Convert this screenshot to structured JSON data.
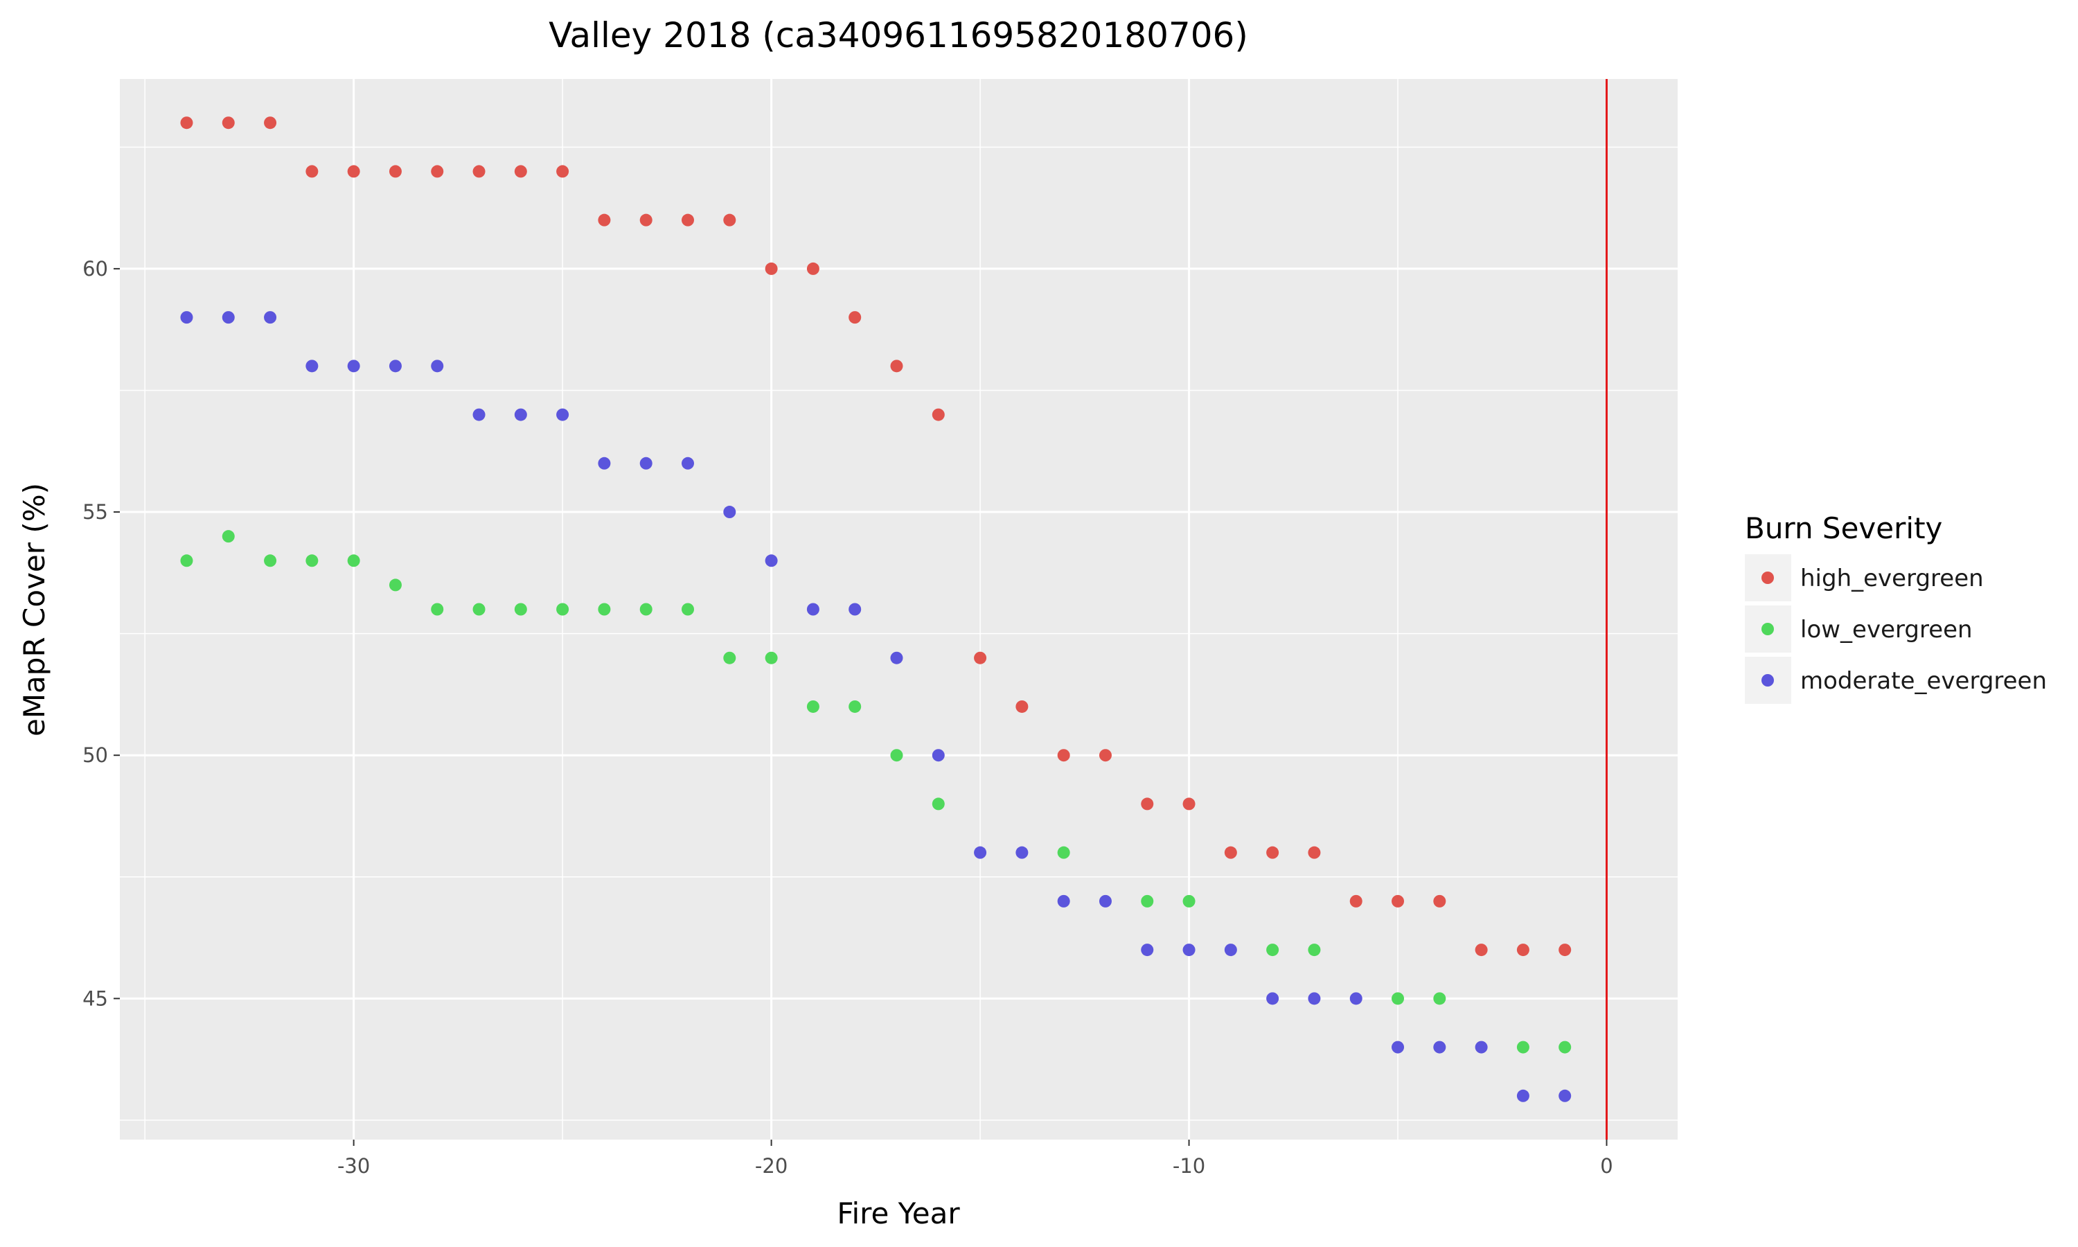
{
  "chart_data": {
    "type": "scatter",
    "title": "Valley 2018 (ca3409611695820180706)",
    "xlabel": "Fire Year",
    "ylabel": "eMapR Cover (%)",
    "xlim": [
      -35.6,
      1.7
    ],
    "ylim": [
      42.1,
      63.9
    ],
    "x_ticks": [
      -30,
      -20,
      -10,
      0
    ],
    "x_tick_labels": [
      "-30",
      "-20",
      "-10",
      "0"
    ],
    "y_ticks": [
      45,
      50,
      55,
      60
    ],
    "y_tick_labels": [
      "45",
      "50",
      "55",
      "60"
    ],
    "grid": true,
    "background": "#ebebeb",
    "vline": {
      "x": 0,
      "color": "#e31a1c"
    },
    "legend": {
      "title": "Burn Severity",
      "position": "right"
    },
    "series": [
      {
        "name": "high_evergreen",
        "color": "#e0534c",
        "x": [
          -34,
          -33,
          -32,
          -31,
          -30,
          -29,
          -28,
          -27,
          -26,
          -25,
          -24,
          -23,
          -22,
          -21,
          -20,
          -19,
          -18,
          -17,
          -16,
          -15,
          -14,
          -13,
          -12,
          -11,
          -10,
          -9,
          -8,
          -7,
          -6,
          -5,
          -4,
          -3,
          -2,
          -1
        ],
        "y": [
          63,
          63,
          63,
          62,
          62,
          62,
          62,
          62,
          62,
          62,
          61,
          61,
          61,
          61,
          60,
          60,
          59,
          58,
          57,
          52,
          51,
          50,
          50,
          49,
          49,
          48,
          48,
          48,
          47,
          47,
          47,
          46,
          46,
          46
        ]
      },
      {
        "name": "low_evergreen",
        "color": "#4fd85b",
        "x": [
          -34,
          -33,
          -32,
          -31,
          -30,
          -29,
          -28,
          -27,
          -26,
          -25,
          -24,
          -23,
          -22,
          -21,
          -20,
          -19,
          -18,
          -17,
          -16,
          -13,
          -11,
          -10,
          -8,
          -7,
          -5,
          -4,
          -2,
          -1
        ],
        "y": [
          54,
          54.5,
          54,
          54,
          54,
          53.5,
          53,
          53,
          53,
          53,
          53,
          53,
          53,
          52,
          52,
          51,
          51,
          50,
          49,
          48,
          47,
          47,
          46,
          46,
          45,
          45,
          44,
          44
        ]
      },
      {
        "name": "moderate_evergreen",
        "color": "#5b55dc",
        "x": [
          -34,
          -33,
          -32,
          -31,
          -30,
          -29,
          -28,
          -27,
          -26,
          -25,
          -24,
          -23,
          -22,
          -21,
          -20,
          -19,
          -18,
          -17,
          -16,
          -15,
          -14,
          -13,
          -12,
          -11,
          -10,
          -9,
          -8,
          -7,
          -6,
          -5,
          -4,
          -3,
          -2,
          -1
        ],
        "y": [
          59,
          59,
          59,
          58,
          58,
          58,
          58,
          57,
          57,
          57,
          56,
          56,
          56,
          55,
          54,
          53,
          53,
          52,
          50,
          48,
          48,
          47,
          47,
          46,
          46,
          46,
          45,
          45,
          45,
          44,
          44,
          44,
          43,
          43
        ]
      }
    ]
  }
}
